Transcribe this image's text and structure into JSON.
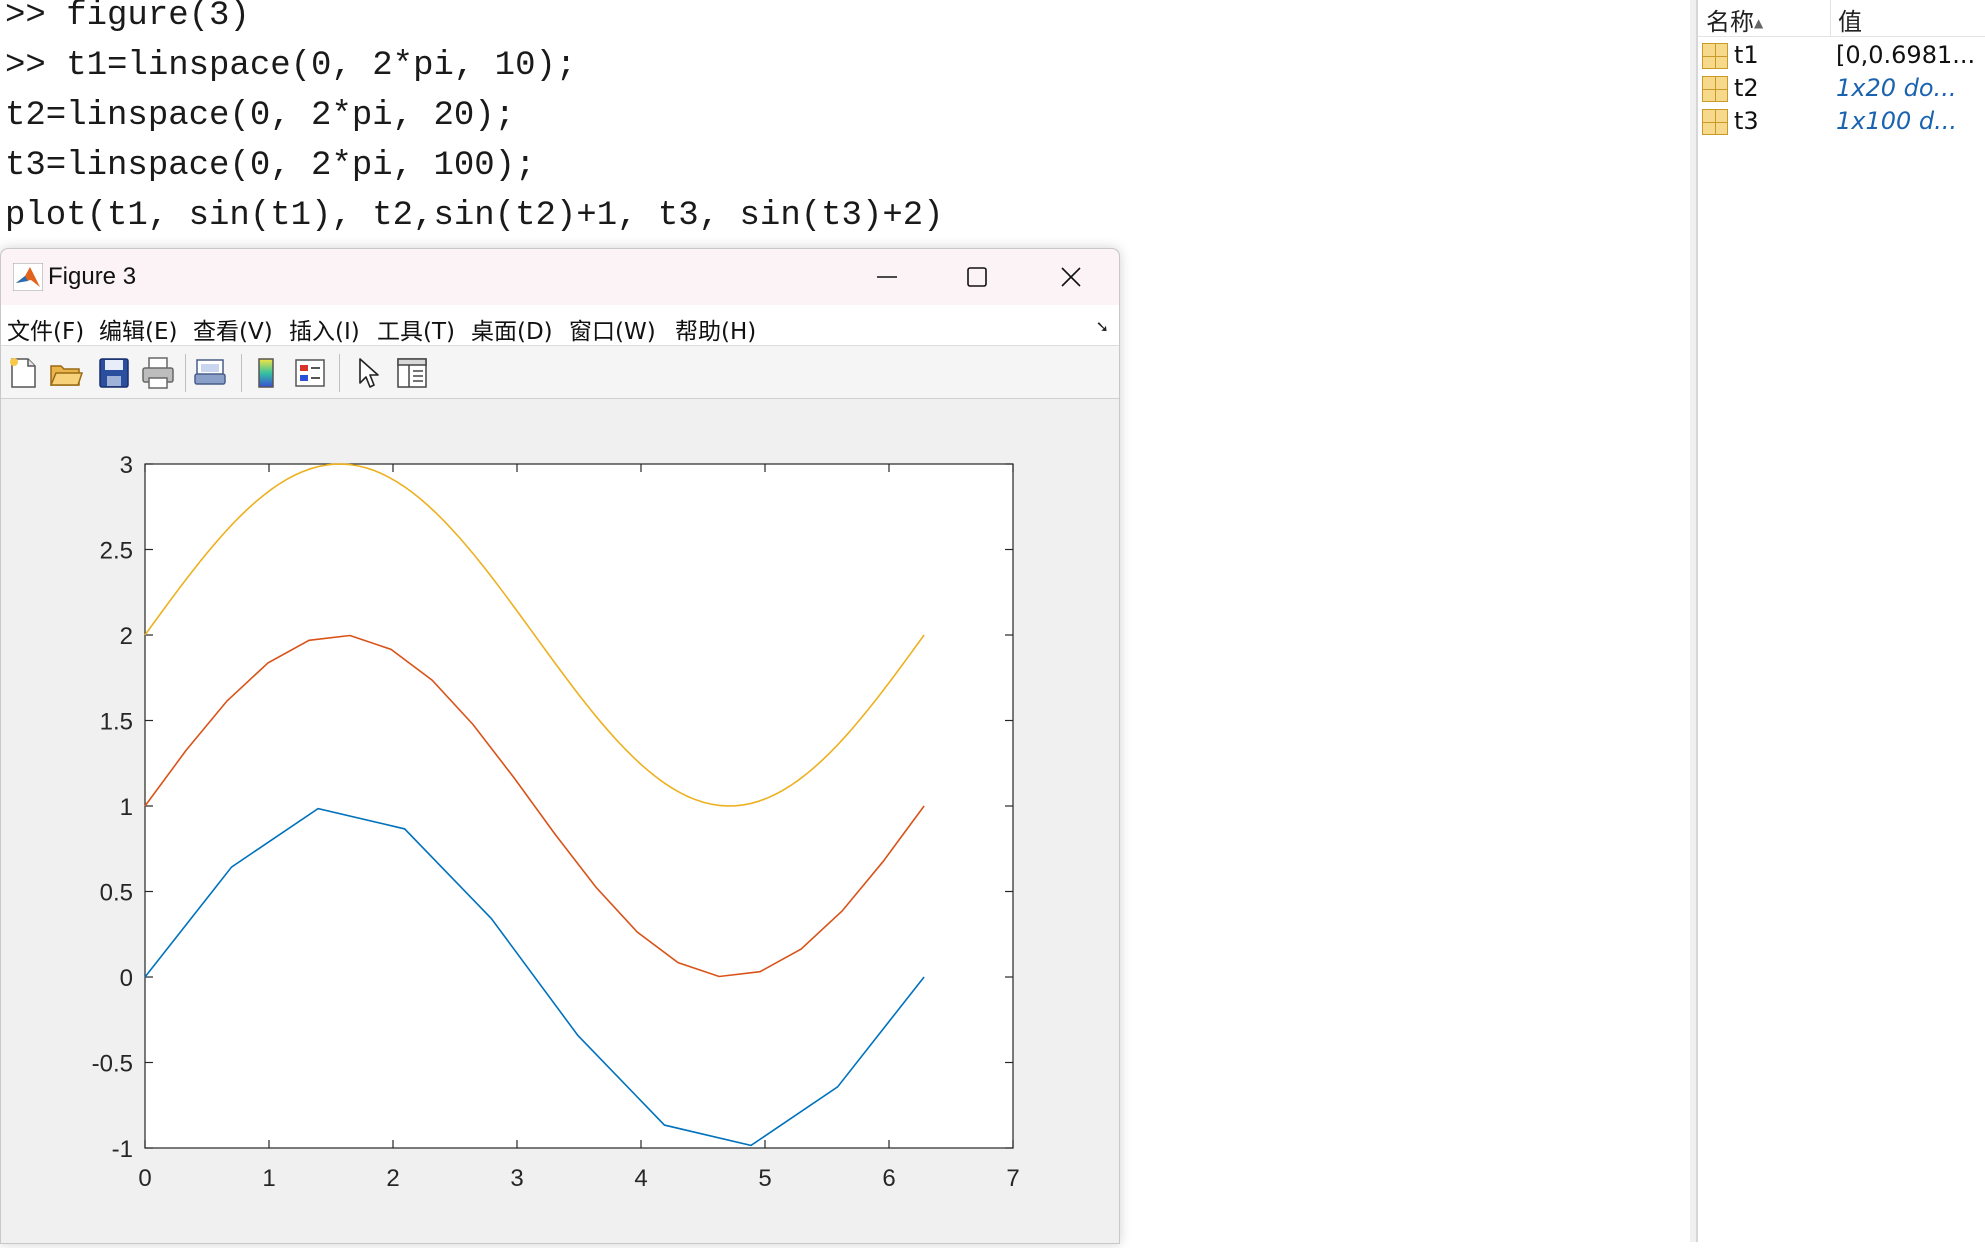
{
  "command_window": {
    "lines": [
      ">> figure(3)",
      ">> t1=linspace(0, 2*pi, 10);",
      "t2=linspace(0, 2*pi, 20);",
      "t3=linspace(0, 2*pi, 100);",
      "plot(t1, sin(t1), t2,sin(t2)+1, t3, sin(t3)+2)"
    ]
  },
  "workspace": {
    "col_name": "名称",
    "col_value": "值",
    "rows": [
      {
        "name": "t1",
        "value": "[0,0.6981..."
      },
      {
        "name": "t2",
        "value": "1x20 do..."
      },
      {
        "name": "t3",
        "value": "1x100 d..."
      }
    ]
  },
  "figure": {
    "title": "Figure 3",
    "menu": [
      "文件(F)",
      "编辑(E)",
      "查看(V)",
      "插入(I)",
      "工具(T)",
      "桌面(D)",
      "窗口(W)",
      "帮助(H)"
    ],
    "toolbar_icons": [
      "new-figure-icon",
      "open-file-icon",
      "save-icon",
      "print-icon",
      "print-preview-icon",
      "colorbar-icon",
      "legend-icon",
      "edit-plot-arrow-icon",
      "property-inspector-icon"
    ]
  },
  "chart_data": {
    "type": "line",
    "xlim": [
      0,
      7
    ],
    "ylim": [
      -1,
      3
    ],
    "xticks": [
      0,
      1,
      2,
      3,
      4,
      5,
      6,
      7
    ],
    "yticks": [
      -1,
      -0.5,
      0,
      0.5,
      1,
      1.5,
      2,
      2.5,
      3
    ],
    "ytick_labels": [
      "-1",
      "-0.5",
      "0",
      "0.5",
      "1",
      "1.5",
      "2",
      "2.5",
      "3"
    ],
    "series": [
      {
        "color": "#0072BD",
        "x": [
          0,
          0.698,
          1.396,
          2.094,
          2.793,
          3.491,
          4.189,
          4.887,
          5.585,
          6.283
        ],
        "y": [
          0,
          0.643,
          0.985,
          0.866,
          0.342,
          -0.342,
          -0.866,
          -0.985,
          -0.643,
          0
        ]
      },
      {
        "color": "#D95319",
        "x": [
          0,
          0.331,
          0.661,
          0.992,
          1.323,
          1.653,
          1.984,
          2.315,
          2.646,
          2.976,
          3.307,
          3.638,
          3.968,
          4.299,
          4.63,
          4.96,
          5.291,
          5.622,
          5.952,
          6.283
        ],
        "y": [
          1,
          1.325,
          1.614,
          1.837,
          1.969,
          1.997,
          1.916,
          1.736,
          1.476,
          1.165,
          0.835,
          0.524,
          0.264,
          0.084,
          0.003,
          0.031,
          0.163,
          0.386,
          0.675,
          1
        ]
      },
      {
        "color": "#EDB120",
        "x_range": [
          0,
          6.283
        ],
        "points": 100,
        "function": "sin(t)+2"
      }
    ]
  }
}
